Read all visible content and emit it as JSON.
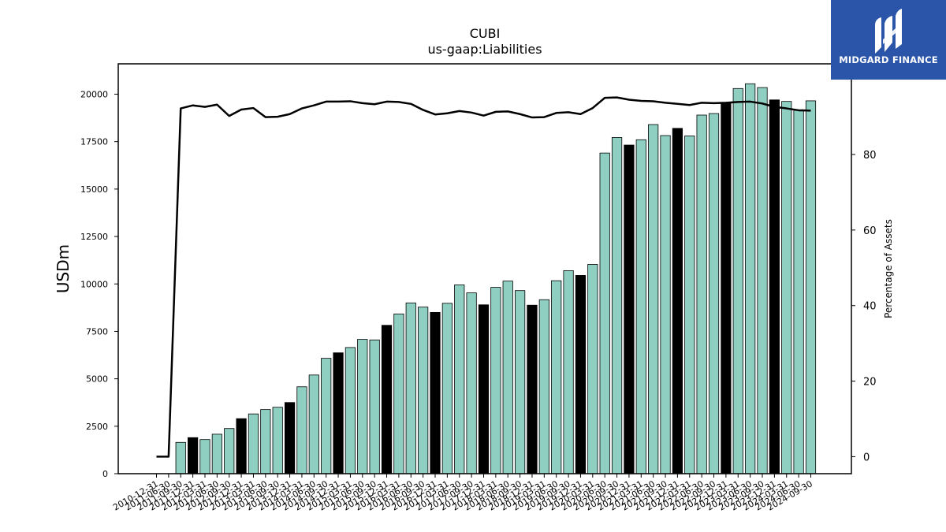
{
  "brand": {
    "name": "MIDGARD FINANCE",
    "color": "#2b55a8"
  },
  "chart_data": {
    "type": "bar",
    "title": "CUBI",
    "subtitle": "us-gaap:Liabilities",
    "ylabel": "USDm",
    "y2label": "Percentage of Assets",
    "ylim": [
      0,
      21600
    ],
    "y2lim": [
      -4.5,
      104
    ],
    "yticks": [
      0,
      2500,
      5000,
      7500,
      10000,
      12500,
      15000,
      17500,
      20000
    ],
    "y2ticks": [
      0,
      20,
      40,
      60,
      80
    ],
    "colors": {
      "bar": "#8ecfc2",
      "bar_year_end": "#000000",
      "line": "#000000"
    },
    "categories": [
      "2010-12-31",
      "2011-06-30",
      "2011-09-30",
      "2011-12-31",
      "2012-03-31",
      "2012-06-30",
      "2012-09-30",
      "2012-12-31",
      "2013-03-31",
      "2013-06-30",
      "2013-09-30",
      "2013-12-31",
      "2014-03-31",
      "2014-06-30",
      "2014-09-30",
      "2014-12-31",
      "2015-03-31",
      "2015-06-30",
      "2015-09-30",
      "2015-12-31",
      "2016-03-31",
      "2016-06-30",
      "2016-09-30",
      "2016-12-31",
      "2017-03-31",
      "2017-06-30",
      "2017-09-30",
      "2017-12-31",
      "2018-03-31",
      "2018-06-30",
      "2018-09-30",
      "2018-12-31",
      "2019-03-31",
      "2019-06-30",
      "2019-09-30",
      "2019-12-31",
      "2020-03-31",
      "2020-06-30",
      "2020-09-30",
      "2020-12-31",
      "2021-03-31",
      "2021-06-30",
      "2021-09-30",
      "2021-12-31",
      "2022-03-31",
      "2022-06-30",
      "2022-09-30",
      "2022-12-31",
      "2023-03-31",
      "2023-06-30",
      "2023-09-30",
      "2023-12-31",
      "2024-03-31",
      "2024-06-30",
      "2024-09-30"
    ],
    "tick_labels": [
      "2010-12-31",
      "2011-06-30",
      "2011-09-30",
      "2011-12-31",
      "2012-03-31",
      "2012-06-30",
      "2012-09-30",
      "2012-12-31",
      "2013-03-31",
      "2013-06-30",
      "2013-09-30",
      "2013-12-31",
      "2014-03-31",
      "2014-06-30",
      "2014-09-30",
      "2014-12-31",
      "2015-03-31",
      "2015-06-30",
      "2015-09-30",
      "2015-12-31",
      "2016-03-31",
      "2016-06-30",
      "2016-09-30",
      "2016-12-31",
      "2017-03-31",
      "2017-06-30",
      "2017-09-30",
      "2017-12-31",
      "2018-03-31",
      "2018-06-30",
      "2018-09-30",
      "2018-12-31",
      "2019-03-31",
      "2019-06-30",
      "2019-09-30",
      "2019-12-31",
      "2020-03-31",
      "2020-06-30",
      "2020-09-30",
      "2020-12-31",
      "2021-03-31",
      "2021-06-30",
      "2021-09-30",
      "2021-12-31",
      "2022-03-31",
      "2022-06-30",
      "2022-09-30",
      "2022-12-31",
      "2023-03-31",
      "2023-06-30",
      "2023-09-30",
      "2023-12-31",
      "2024-03-31",
      "2024-06-30",
      "2024-09-30"
    ],
    "series": [
      {
        "values": [
          null,
          null,
          1650,
          1900,
          1800,
          2080,
          2380,
          2900,
          3150,
          3380,
          3500,
          3750,
          4580,
          5200,
          6080,
          6370,
          6650,
          7080,
          7050,
          7820,
          8420,
          9000,
          8780,
          8500,
          8980,
          9950,
          9530,
          8900,
          9820,
          10150,
          9650,
          8880,
          9170,
          10170,
          10700,
          10450,
          11030,
          16900,
          17720,
          17320,
          17600,
          18400,
          17820,
          18200,
          17800,
          18900,
          18980,
          19520,
          20300,
          20550,
          20350,
          19700,
          19620,
          19180,
          19650
        ]
      },
      {
        "values": [
          0,
          0,
          92.2,
          93.0,
          92.6,
          93.2,
          90.2,
          91.9,
          92.3,
          89.9,
          90.0,
          90.7,
          92.2,
          93.0,
          94.0,
          94.0,
          94.1,
          93.6,
          93.3,
          94.0,
          93.9,
          93.4,
          91.8,
          90.6,
          90.9,
          91.5,
          91.1,
          90.3,
          91.3,
          91.4,
          90.7,
          89.8,
          89.9,
          91.0,
          91.2,
          90.7,
          92.3,
          95.0,
          95.1,
          94.5,
          94.2,
          94.1,
          93.7,
          93.4,
          93.1,
          93.7,
          93.6,
          93.7,
          93.9,
          94.0,
          93.5,
          92.6,
          92.2,
          91.7,
          91.6
        ]
      }
    ],
    "year_end_categories": [
      "2011-12-31",
      "2012-12-31",
      "2013-12-31",
      "2014-12-31",
      "2015-12-31",
      "2016-12-31",
      "2017-12-31",
      "2018-12-31",
      "2019-12-31",
      "2020-12-31",
      "2021-12-31",
      "2022-12-31",
      "2023-12-31"
    ],
    "grid": false
  }
}
